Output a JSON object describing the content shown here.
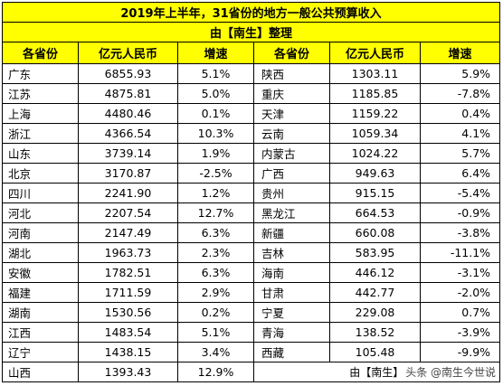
{
  "title": {
    "line1": "2019年上半年，31省份的地方一般公共预算收入",
    "line2": "由【南生】整理"
  },
  "headers": {
    "left_province": "各省份",
    "left_revenue": "亿元人民币",
    "left_growth": "增速",
    "right_province": "各省份",
    "right_revenue": "亿元人民币",
    "right_growth": "增速"
  },
  "rows": [
    {
      "lp": "广东",
      "lr": "6855.93",
      "lg": "5.1%",
      "rp": "陕西",
      "rr": "1303.11",
      "rg": "5.9%"
    },
    {
      "lp": "江苏",
      "lr": "4875.81",
      "lg": "5.0%",
      "rp": "重庆",
      "rr": "1185.85",
      "rg": "-7.8%"
    },
    {
      "lp": "上海",
      "lr": "4480.46",
      "lg": "0.1%",
      "rp": "天津",
      "rr": "1159.22",
      "rg": "0.4%"
    },
    {
      "lp": "浙江",
      "lr": "4366.54",
      "lg": "10.3%",
      "rp": "云南",
      "rr": "1059.34",
      "rg": "4.1%"
    },
    {
      "lp": "山东",
      "lr": "3739.14",
      "lg": "1.9%",
      "rp": "内蒙古",
      "rr": "1024.22",
      "rg": "5.7%"
    },
    {
      "lp": "北京",
      "lr": "3170.87",
      "lg": "-2.5%",
      "rp": "广西",
      "rr": "949.63",
      "rg": "6.4%"
    },
    {
      "lp": "四川",
      "lr": "2241.90",
      "lg": "1.2%",
      "rp": "贵州",
      "rr": "915.15",
      "rg": "-5.4%"
    },
    {
      "lp": "河北",
      "lr": "2207.54",
      "lg": "12.7%",
      "rp": "黑龙江",
      "rr": "664.53",
      "rg": "-0.9%"
    },
    {
      "lp": "河南",
      "lr": "2147.49",
      "lg": "6.3%",
      "rp": "新疆",
      "rr": "660.08",
      "rg": "-3.8%"
    },
    {
      "lp": "湖北",
      "lr": "1963.73",
      "lg": "2.3%",
      "rp": "吉林",
      "rr": "583.95",
      "rg": "-11.1%"
    },
    {
      "lp": "安徽",
      "lr": "1782.51",
      "lg": "6.3%",
      "rp": "海南",
      "rr": "446.12",
      "rg": "-3.1%"
    },
    {
      "lp": "福建",
      "lr": "1711.59",
      "lg": "2.9%",
      "rp": "甘肃",
      "rr": "442.77",
      "rg": "-2.0%"
    },
    {
      "lp": "湖南",
      "lr": "1530.56",
      "lg": "0.2%",
      "rp": "宁夏",
      "rr": "229.08",
      "rg": "0.7%"
    },
    {
      "lp": "江西",
      "lr": "1483.54",
      "lg": "5.1%",
      "rp": "青海",
      "rr": "138.52",
      "rg": "-3.9%"
    },
    {
      "lp": "辽宁",
      "lr": "1438.15",
      "lg": "3.4%",
      "rp": "西藏",
      "rr": "105.48",
      "rg": "-9.9%"
    }
  ],
  "last_row": {
    "lp": "山西",
    "lr": "1393.43",
    "lg": "12.9%"
  },
  "note": {
    "source": "由【南生】",
    "watermark": "头条 @南生今世说"
  },
  "colors": {
    "header_bg": "#ffff00",
    "border": "#000000"
  }
}
